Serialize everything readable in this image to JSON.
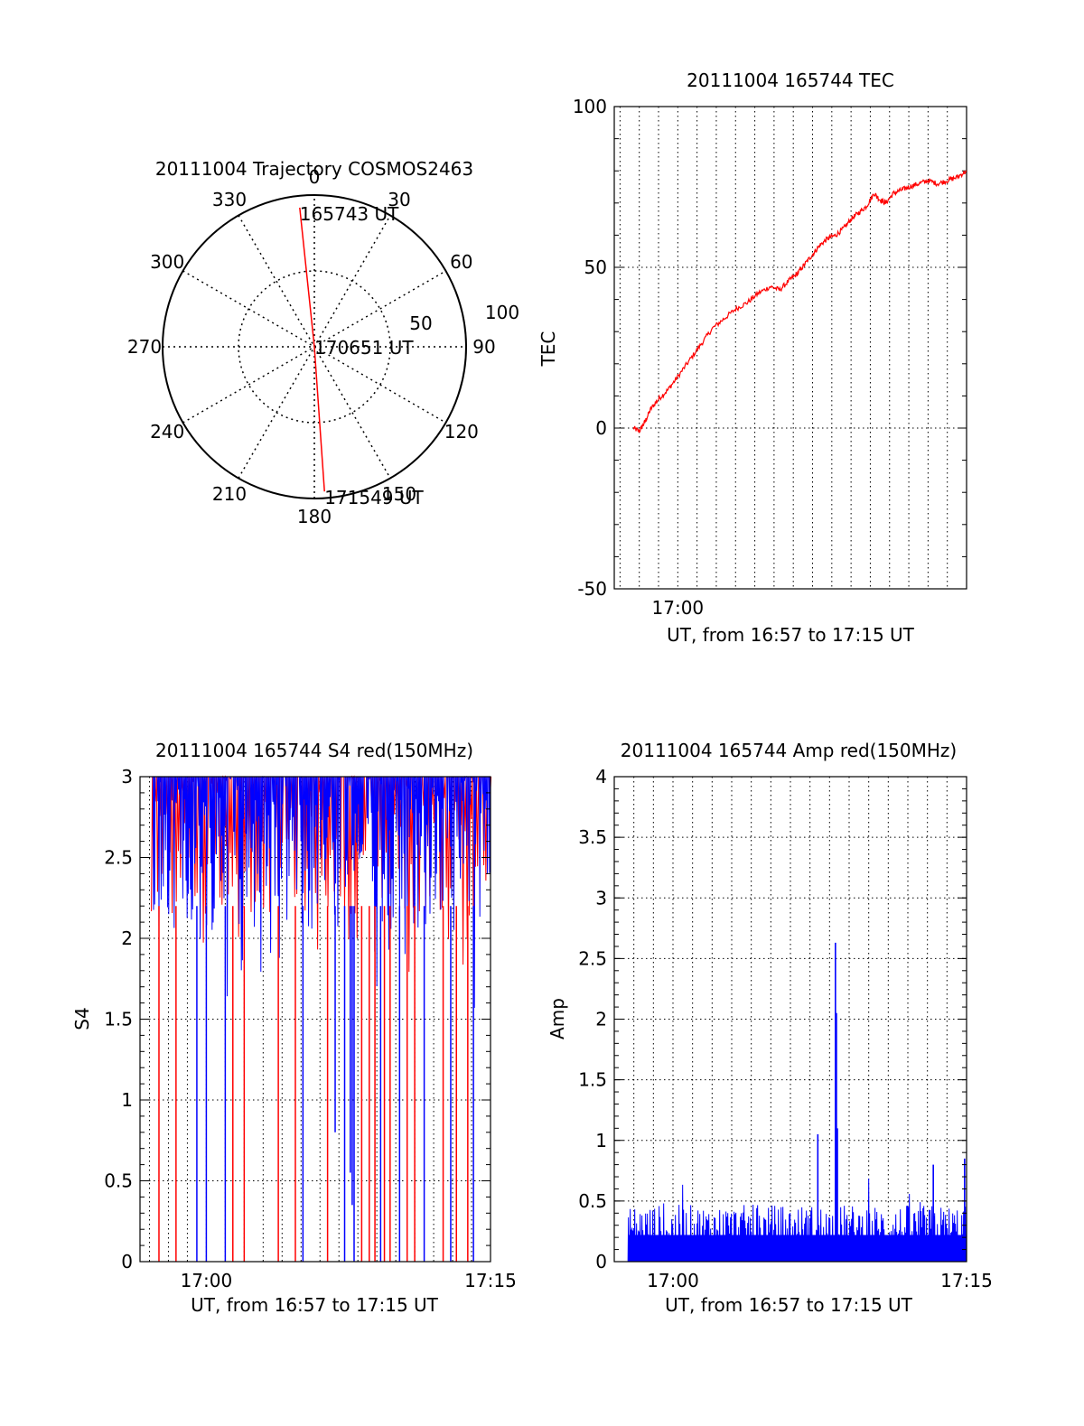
{
  "chart_data": [
    {
      "type": "polar",
      "title": "20111004 Trajectory COSMOS2463",
      "azimuth_labels": [
        "0",
        "30",
        "60",
        "90",
        "120",
        "150",
        "180",
        "210",
        "240",
        "270",
        "300",
        "330"
      ],
      "radial_labels": [
        "50",
        "100"
      ],
      "trajectory": [
        {
          "label": "165743 UT",
          "azimuth": 354,
          "elevation": 7
        },
        {
          "label": "170651 UT",
          "azimuth": 0,
          "elevation": 90
        },
        {
          "label": "171549 UT",
          "azimuth": 176,
          "elevation": 4
        }
      ],
      "line_color": "#ff0000"
    },
    {
      "type": "line",
      "title": "20111004 165744 TEC",
      "ylabel": "TEC",
      "xlabel": "UT, from 16:57 to 17:15 UT",
      "ylim": [
        -50,
        100
      ],
      "yticks": [
        "100",
        "50",
        "0",
        "-50"
      ],
      "xticks": [
        "17:00"
      ],
      "xlim_minutes": [
        -3.3,
        15
      ],
      "series": [
        {
          "color": "#ff0000",
          "x_minutes": [
            -2.3,
            -2.0,
            -1.7,
            -1.4,
            -1.0,
            -0.5,
            0,
            0.6,
            1.2,
            1.8,
            2.4,
            3.0,
            3.6,
            4.2,
            4.8,
            5.3,
            5.8,
            6.2,
            6.6,
            7.0,
            7.4,
            7.8,
            8.2,
            8.6,
            9.0,
            9.4,
            9.8,
            10.2,
            10.5,
            10.8,
            11.2,
            11.6,
            12.0,
            12.5,
            13.0,
            13.5,
            14.0,
            14.5,
            15.0
          ],
          "values": [
            0,
            -1,
            2,
            6,
            9,
            12,
            16,
            21,
            26,
            31,
            34,
            37,
            39,
            42,
            44,
            43,
            46,
            48,
            51,
            54,
            57,
            59,
            60,
            62,
            65,
            67,
            69,
            73,
            71,
            70,
            73,
            74,
            75,
            76,
            77,
            76,
            77,
            78,
            80
          ]
        }
      ]
    },
    {
      "type": "line",
      "title": "20111004 165744 S4 red(150MHz)",
      "ylabel": "S4",
      "xlabel": "UT, from 16:57 to 17:15 UT",
      "ylim": [
        0,
        3
      ],
      "yticks": [
        "3",
        "2.5",
        "2",
        "1.5",
        "1",
        "0.5",
        "0"
      ],
      "xticks": [
        "17:00",
        "17:15"
      ],
      "xlim_minutes": [
        -3.5,
        15
      ],
      "series": [
        {
          "color": "#0000ff",
          "description_none": ""
        },
        {
          "color": "#ff0000",
          "description_none": ""
        }
      ],
      "red_drops_minutes": [
        -2.5,
        -1.6,
        1.4,
        2.0,
        3.8,
        4.7,
        6.4,
        8.2,
        8.6,
        8.9,
        9.4,
        9.7,
        10.6,
        11.0,
        12.5,
        13.2,
        13.8
      ],
      "blue_drops_minutes": [
        -0.5,
        0,
        1.0,
        5.1,
        7.3,
        7.8,
        9.2,
        10.2,
        11.5,
        12.9,
        14.1
      ],
      "blue_dips": [
        {
          "x_minutes": 6.8,
          "value": 0.8
        },
        {
          "x_minutes": 7.6,
          "value": 0.55
        },
        {
          "x_minutes": 7.7,
          "value": 0.35
        }
      ]
    },
    {
      "type": "bar",
      "title": "20111004 165744 Amp red(150MHz)",
      "ylabel": "Amp",
      "xlabel": "UT, from 16:57 to 17:15 UT",
      "ylim": [
        0,
        4
      ],
      "yticks": [
        "4",
        "3.5",
        "3",
        "2.5",
        "2",
        "1.5",
        "1",
        "0.5",
        "0"
      ],
      "xticks": [
        "17:00",
        "17:15"
      ],
      "xlim_minutes": [
        -3,
        15
      ],
      "series": [
        {
          "color": "#0000ff"
        }
      ],
      "baseline_level": 0.3,
      "spikes": [
        {
          "x_minutes": 8.3,
          "value": 2.63
        },
        {
          "x_minutes": 8.35,
          "value": 2.05
        },
        {
          "x_minutes": 8.4,
          "value": 1.1
        },
        {
          "x_minutes": 7.4,
          "value": 1.05
        },
        {
          "x_minutes": 14.9,
          "value": 0.85
        },
        {
          "x_minutes": 13.3,
          "value": 0.8
        }
      ]
    }
  ]
}
